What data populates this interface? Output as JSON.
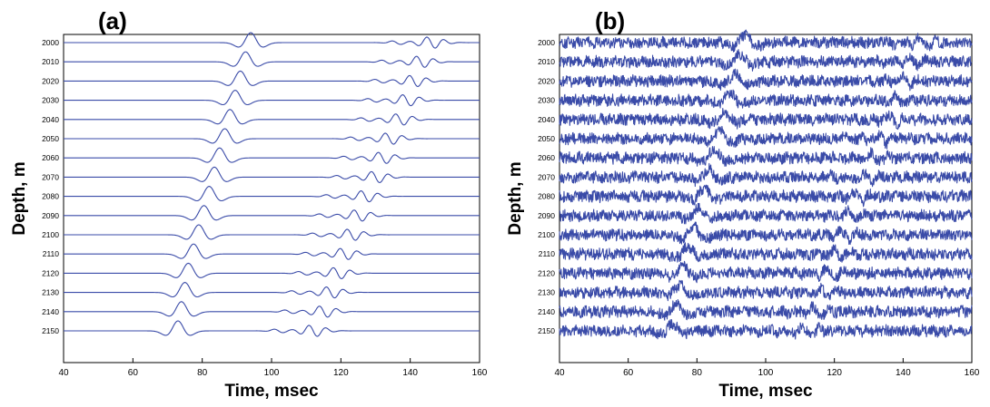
{
  "chart_data": [
    {
      "type": "line",
      "panel": "(a)",
      "xlabel": "Time, msec",
      "ylabel": "Depth, m",
      "xlim": [
        40,
        160
      ],
      "xticks": [
        40,
        60,
        80,
        100,
        120,
        140,
        160
      ],
      "depths": [
        2000,
        2010,
        2020,
        2030,
        2040,
        2050,
        2060,
        2070,
        2080,
        2090,
        2100,
        2110,
        2120,
        2130,
        2140,
        2150
      ],
      "direct_arrival_ms": [
        94,
        92.5,
        91,
        89.5,
        88,
        86.5,
        85,
        83.5,
        82,
        80.5,
        79,
        77.5,
        76,
        75,
        74,
        73
      ],
      "reflection_arrival_ms": [
        146,
        143,
        141,
        139,
        137,
        134,
        132,
        130,
        127,
        125,
        123,
        121,
        119,
        117,
        115,
        112
      ],
      "noise": "clean",
      "grid": false
    },
    {
      "type": "line",
      "panel": "(b)",
      "xlabel": "Time, msec",
      "ylabel": "Depth, m",
      "xlim": [
        40,
        160
      ],
      "xticks": [
        40,
        60,
        80,
        100,
        120,
        140,
        160
      ],
      "depths": [
        2000,
        2010,
        2020,
        2030,
        2040,
        2050,
        2060,
        2070,
        2080,
        2090,
        2100,
        2110,
        2120,
        2130,
        2140,
        2150
      ],
      "direct_arrival_ms": [
        94,
        92.5,
        91,
        89.5,
        88,
        86.5,
        85,
        83.5,
        82,
        80.5,
        79,
        77.5,
        76,
        75,
        74,
        73
      ],
      "reflection_arrival_ms": [
        146,
        143,
        141,
        139,
        137,
        134,
        132,
        130,
        127,
        125,
        123,
        121,
        119,
        117,
        115,
        112
      ],
      "noise": "heavy random noise",
      "grid": false
    }
  ],
  "colors": {
    "trace": "#3a4ba8",
    "axis": "#000000",
    "background": "#ffffff"
  }
}
